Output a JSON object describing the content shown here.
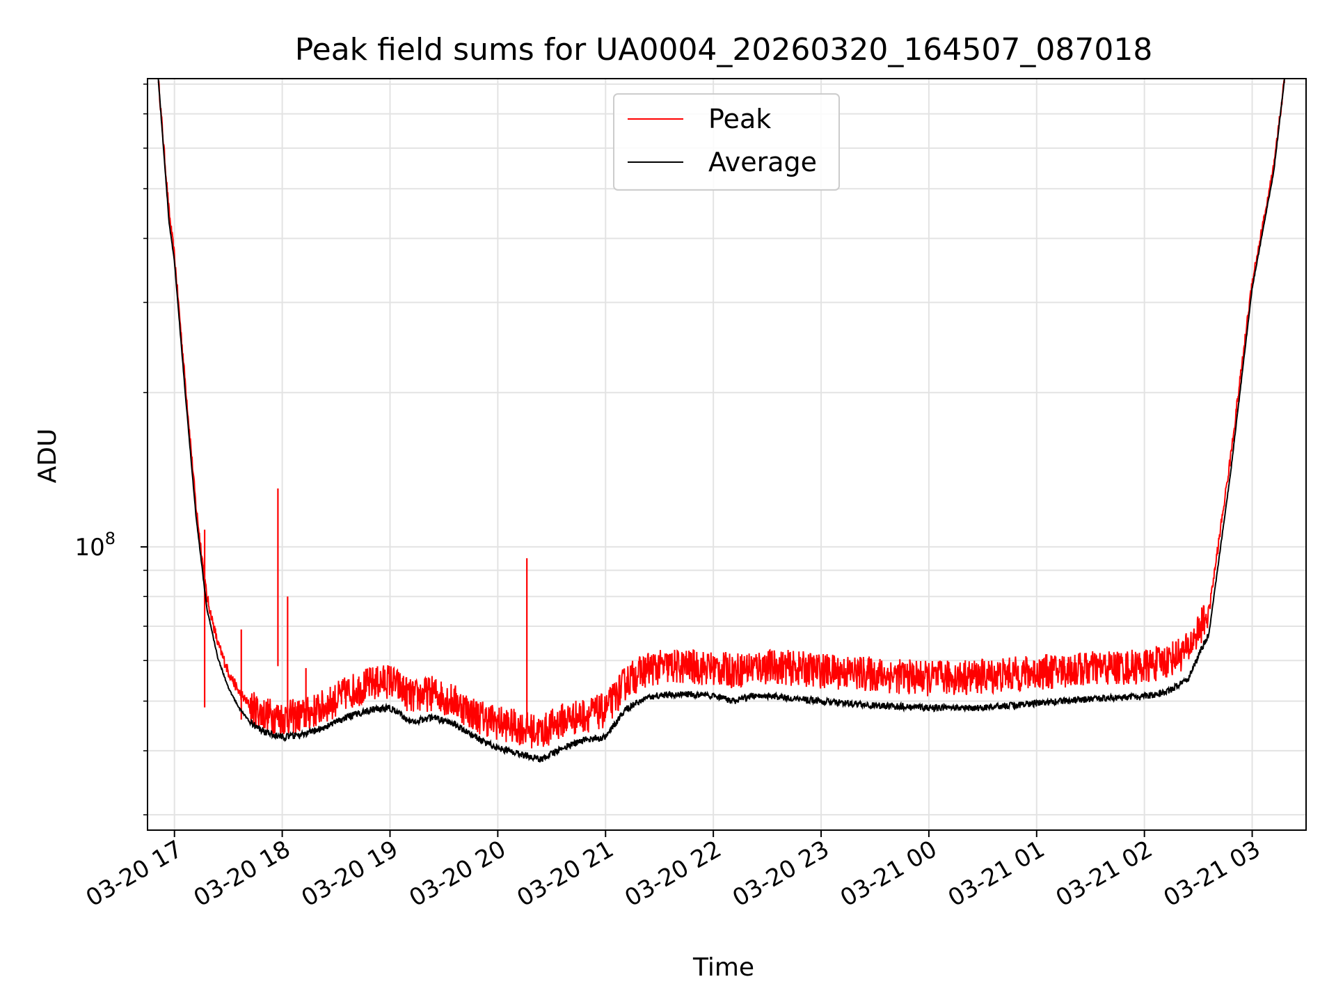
{
  "chart_data": {
    "type": "line",
    "title": "Peak field sums for UA0004_20260320_164507_087018",
    "xlabel": "Time",
    "ylabel": "ADU",
    "yscale": "log",
    "ylim": [
      28000000,
      820000000
    ],
    "xlim": [
      16.75,
      27.5
    ],
    "x_unit": "hours since 2026-03-20 00:00",
    "grid": true,
    "legend_position": "upper center",
    "y_tick_labels": [
      {
        "value": 100000000,
        "base": "10",
        "exp": "8"
      }
    ],
    "x_ticks": [
      {
        "value": 17,
        "label": "03-20 17"
      },
      {
        "value": 18,
        "label": "03-20 18"
      },
      {
        "value": 19,
        "label": "03-20 19"
      },
      {
        "value": 20,
        "label": "03-20 20"
      },
      {
        "value": 21,
        "label": "03-20 21"
      },
      {
        "value": 22,
        "label": "03-20 22"
      },
      {
        "value": 23,
        "label": "03-20 23"
      },
      {
        "value": 24,
        "label": "03-21 00"
      },
      {
        "value": 25,
        "label": "03-21 01"
      },
      {
        "value": 26,
        "label": "03-21 02"
      },
      {
        "value": 27,
        "label": "03-21 03"
      }
    ],
    "series": [
      {
        "name": "Peak",
        "color": "#ff0000",
        "x": [
          16.85,
          16.95,
          17.0,
          17.1,
          17.2,
          17.3,
          17.4,
          17.5,
          17.6,
          17.7,
          17.8,
          17.9,
          18.0,
          18.2,
          18.4,
          18.6,
          18.8,
          19.0,
          19.2,
          19.4,
          19.6,
          19.8,
          20.0,
          20.2,
          20.4,
          20.6,
          20.8,
          21.0,
          21.2,
          21.4,
          21.6,
          21.8,
          22.0,
          22.2,
          22.4,
          22.6,
          22.8,
          23.0,
          23.5,
          24.0,
          24.5,
          25.0,
          25.5,
          26.0,
          26.2,
          26.4,
          26.6,
          26.8,
          27.0,
          27.2,
          27.3
        ],
        "values": [
          820000000,
          450000000,
          370000000,
          210000000,
          120000000,
          80000000,
          65000000,
          57000000,
          52000000,
          49000000,
          47500000,
          47000000,
          46500000,
          47000000,
          49000000,
          52000000,
          54000000,
          55000000,
          51000000,
          52000000,
          50000000,
          47000000,
          45500000,
          44500000,
          43500000,
          46000000,
          47000000,
          48000000,
          55000000,
          58000000,
          58500000,
          58500000,
          58000000,
          57500000,
          58500000,
          58500000,
          58000000,
          57500000,
          56500000,
          55500000,
          56000000,
          57000000,
          58000000,
          58500000,
          60000000,
          63000000,
          75000000,
          150000000,
          330000000,
          550000000,
          820000000
        ],
        "spikes": [
          {
            "x": 17.28,
            "value": 108000000
          },
          {
            "x": 17.62,
            "value": 69000000
          },
          {
            "x": 17.96,
            "value": 130000000
          },
          {
            "x": 18.05,
            "value": 80000000
          },
          {
            "x": 18.22,
            "value": 58000000
          },
          {
            "x": 20.27,
            "value": 95000000
          }
        ]
      },
      {
        "name": "Average",
        "color": "#000000",
        "x": [
          16.85,
          16.95,
          17.0,
          17.1,
          17.2,
          17.3,
          17.4,
          17.5,
          17.6,
          17.7,
          17.8,
          17.9,
          18.0,
          18.2,
          18.4,
          18.6,
          18.8,
          19.0,
          19.2,
          19.4,
          19.6,
          19.8,
          20.0,
          20.2,
          20.4,
          20.6,
          20.8,
          21.0,
          21.2,
          21.4,
          21.6,
          21.8,
          22.0,
          22.2,
          22.4,
          22.6,
          22.8,
          23.0,
          23.5,
          24.0,
          24.5,
          25.0,
          25.5,
          26.0,
          26.2,
          26.4,
          26.6,
          26.8,
          27.0,
          27.2,
          27.3
        ],
        "values": [
          820000000,
          430000000,
          360000000,
          200000000,
          115000000,
          76000000,
          61000000,
          53000000,
          48500000,
          45500000,
          44000000,
          43000000,
          42500000,
          43000000,
          44500000,
          46500000,
          48000000,
          48500000,
          45500000,
          46500000,
          45000000,
          42500000,
          40500000,
          39500000,
          38500000,
          40500000,
          42000000,
          42500000,
          48500000,
          51000000,
          51500000,
          51500000,
          51000000,
          50000000,
          51500000,
          51000000,
          50500000,
          50000000,
          49000000,
          48500000,
          48500000,
          49500000,
          50500000,
          51000000,
          52000000,
          55000000,
          68000000,
          140000000,
          320000000,
          540000000,
          820000000
        ]
      }
    ]
  }
}
